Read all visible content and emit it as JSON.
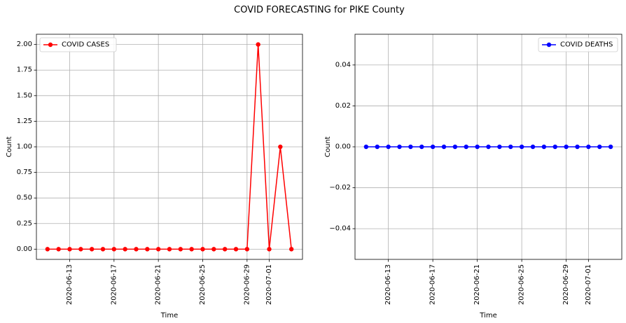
{
  "figure": {
    "title": "COVID FORECASTING for PIKE County"
  },
  "chart_data": [
    {
      "type": "line",
      "xlabel": "Time",
      "ylabel": "Count",
      "legend_label": "COVID CASES",
      "legend_position": "top-left",
      "color": "#ff0000",
      "marker": "circle",
      "grid": true,
      "xlim": [
        "2020-06-10",
        "2020-07-04"
      ],
      "ylim": [
        -0.1,
        2.1
      ],
      "xticks": [
        "2020-06-13",
        "2020-06-17",
        "2020-06-21",
        "2020-06-25",
        "2020-06-29",
        "2020-07-01"
      ],
      "yticks": [
        "0.00",
        "0.25",
        "0.50",
        "0.75",
        "1.00",
        "1.25",
        "1.50",
        "1.75",
        "2.00"
      ],
      "x": [
        "2020-06-11",
        "2020-06-12",
        "2020-06-13",
        "2020-06-14",
        "2020-06-15",
        "2020-06-16",
        "2020-06-17",
        "2020-06-18",
        "2020-06-19",
        "2020-06-20",
        "2020-06-21",
        "2020-06-22",
        "2020-06-23",
        "2020-06-24",
        "2020-06-25",
        "2020-06-26",
        "2020-06-27",
        "2020-06-28",
        "2020-06-29",
        "2020-06-30",
        "2020-07-01",
        "2020-07-02",
        "2020-07-03"
      ],
      "values": [
        0,
        0,
        0,
        0,
        0,
        0,
        0,
        0,
        0,
        0,
        0,
        0,
        0,
        0,
        0,
        0,
        0,
        0,
        0,
        2,
        0,
        1,
        0
      ]
    },
    {
      "type": "line",
      "xlabel": "Time",
      "ylabel": "Count",
      "legend_label": "COVID DEATHS",
      "legend_position": "top-right",
      "color": "#0000ff",
      "marker": "circle",
      "grid": true,
      "xlim": [
        "2020-06-10",
        "2020-07-04"
      ],
      "ylim": [
        -0.055,
        0.055
      ],
      "xticks": [
        "2020-06-13",
        "2020-06-17",
        "2020-06-21",
        "2020-06-25",
        "2020-06-29",
        "2020-07-01"
      ],
      "yticks": [
        "−0.04",
        "−0.02",
        "0.00",
        "0.02",
        "0.04"
      ],
      "x": [
        "2020-06-11",
        "2020-06-12",
        "2020-06-13",
        "2020-06-14",
        "2020-06-15",
        "2020-06-16",
        "2020-06-17",
        "2020-06-18",
        "2020-06-19",
        "2020-06-20",
        "2020-06-21",
        "2020-06-22",
        "2020-06-23",
        "2020-06-24",
        "2020-06-25",
        "2020-06-26",
        "2020-06-27",
        "2020-06-28",
        "2020-06-29",
        "2020-06-30",
        "2020-07-01",
        "2020-07-02",
        "2020-07-03"
      ],
      "values": [
        0,
        0,
        0,
        0,
        0,
        0,
        0,
        0,
        0,
        0,
        0,
        0,
        0,
        0,
        0,
        0,
        0,
        0,
        0,
        0,
        0,
        0,
        0
      ]
    }
  ]
}
